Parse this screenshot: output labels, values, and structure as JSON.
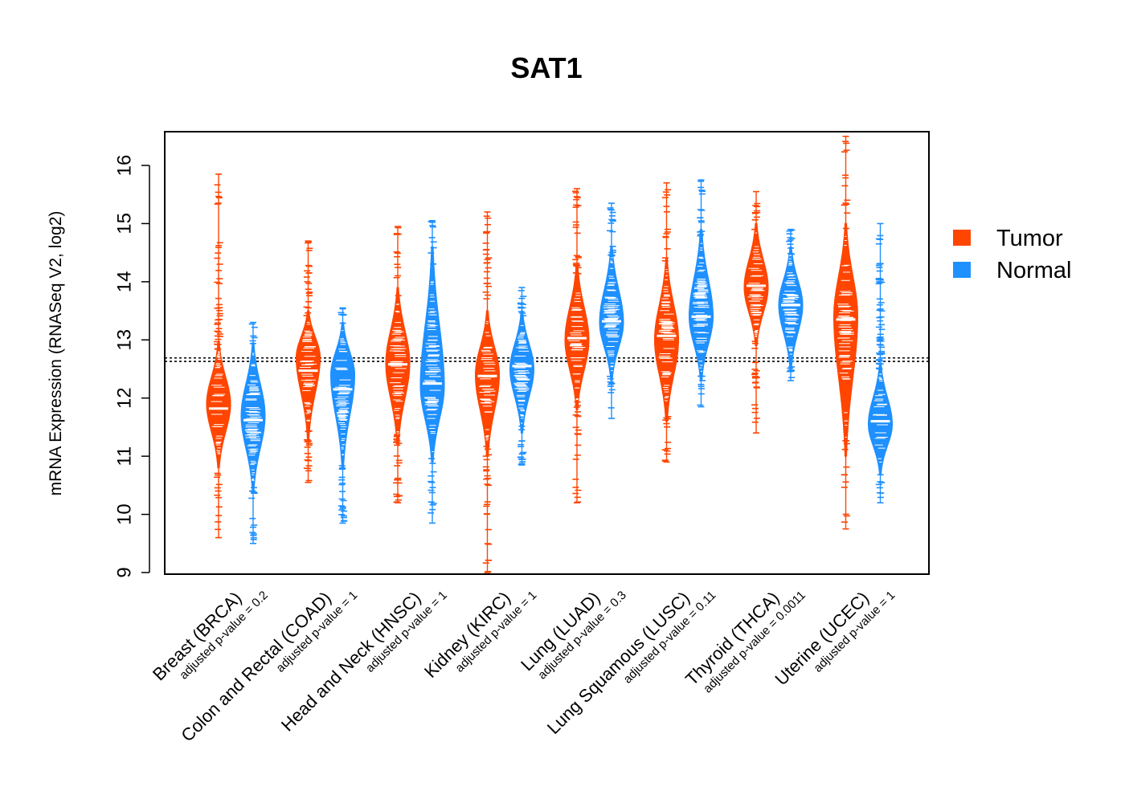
{
  "chart_data": {
    "type": "violin",
    "title": "SAT1",
    "ylabel": "mRNA Expression (RNASeq V2, log2)",
    "ylim": [
      9,
      16.6
    ],
    "yticks": [
      9,
      10,
      11,
      12,
      13,
      14,
      15,
      16
    ],
    "reference_lines": [
      12.63,
      12.69
    ],
    "legend": {
      "position": "right",
      "entries": [
        {
          "label": "Tumor",
          "color": "#FF4500"
        },
        {
          "label": "Normal",
          "color": "#1E90FF"
        }
      ]
    },
    "categories": [
      {
        "name": "Breast (BRCA)",
        "pvalue_text": "adjusted p-value = 0.2",
        "tumor": {
          "median": 11.82,
          "range": [
            9.6,
            15.85
          ],
          "body": [
            10.8,
            12.95
          ],
          "mode": 11.9
        },
        "normal": {
          "median": 11.62,
          "range": [
            9.5,
            13.3
          ],
          "body": [
            10.4,
            12.95
          ],
          "mode": 11.7
        }
      },
      {
        "name": "Colon and Rectal (COAD)",
        "pvalue_text": "adjusted p-value = 1",
        "tumor": {
          "median": 12.47,
          "range": [
            10.55,
            14.7
          ],
          "body": [
            11.3,
            13.5
          ],
          "mode": 12.7
        },
        "normal": {
          "median": 12.15,
          "range": [
            9.85,
            13.55
          ],
          "body": [
            10.8,
            13.3
          ],
          "mode": 12.4
        }
      },
      {
        "name": "Head and Neck (HNSC)",
        "pvalue_text": "adjusted p-value = 1",
        "tumor": {
          "median": 12.58,
          "range": [
            10.2,
            14.95
          ],
          "body": [
            11.2,
            13.9
          ],
          "mode": 12.6
        },
        "normal": {
          "median": 12.25,
          "range": [
            9.85,
            15.05
          ],
          "body": [
            10.9,
            14.6
          ],
          "mode": 12.2
        }
      },
      {
        "name": "Kidney (KIRC)",
        "pvalue_text": "adjusted p-value = 1",
        "tumor": {
          "median": 12.38,
          "range": [
            9.0,
            15.2
          ],
          "body": [
            11.0,
            13.5
          ],
          "mode": 12.4
        },
        "normal": {
          "median": 12.55,
          "range": [
            10.85,
            13.9
          ],
          "body": [
            11.4,
            13.5
          ],
          "mode": 12.5
        }
      },
      {
        "name": "Lung (LUAD)",
        "pvalue_text": "adjusted p-value = 0.3",
        "tumor": {
          "median": 13.03,
          "range": [
            10.2,
            15.6
          ],
          "body": [
            11.8,
            14.3
          ],
          "mode": 13.0
        },
        "normal": {
          "median": 13.32,
          "range": [
            11.65,
            15.35
          ],
          "body": [
            12.3,
            14.6
          ],
          "mode": 13.3
        }
      },
      {
        "name": "Lung Squamous (LUSC)",
        "pvalue_text": "adjusted p-value = 0.11",
        "tumor": {
          "median": 13.07,
          "range": [
            10.9,
            15.7
          ],
          "body": [
            11.6,
            14.4
          ],
          "mode": 13.0
        },
        "normal": {
          "median": 13.4,
          "range": [
            11.85,
            15.75
          ],
          "body": [
            12.3,
            14.9
          ],
          "mode": 13.4
        }
      },
      {
        "name": "Thyroid (THCA)",
        "pvalue_text": "adjusted p-value = 0.0011",
        "tumor": {
          "median": 13.93,
          "range": [
            11.4,
            15.55
          ],
          "body": [
            12.9,
            15.0
          ],
          "mode": 13.9
        },
        "normal": {
          "median": 13.6,
          "range": [
            12.3,
            14.9
          ],
          "body": [
            12.5,
            14.6
          ],
          "mode": 13.6
        }
      },
      {
        "name": "Uterine (UCEC)",
        "pvalue_text": "adjusted p-value = 1",
        "tumor": {
          "median": 13.35,
          "range": [
            9.75,
            16.5
          ],
          "body": [
            11.0,
            15.0
          ],
          "mode": 13.4
        },
        "normal": {
          "median": 11.6,
          "range": [
            10.2,
            15.0
          ],
          "body": [
            10.7,
            12.6
          ],
          "mode": 11.55
        }
      }
    ]
  }
}
